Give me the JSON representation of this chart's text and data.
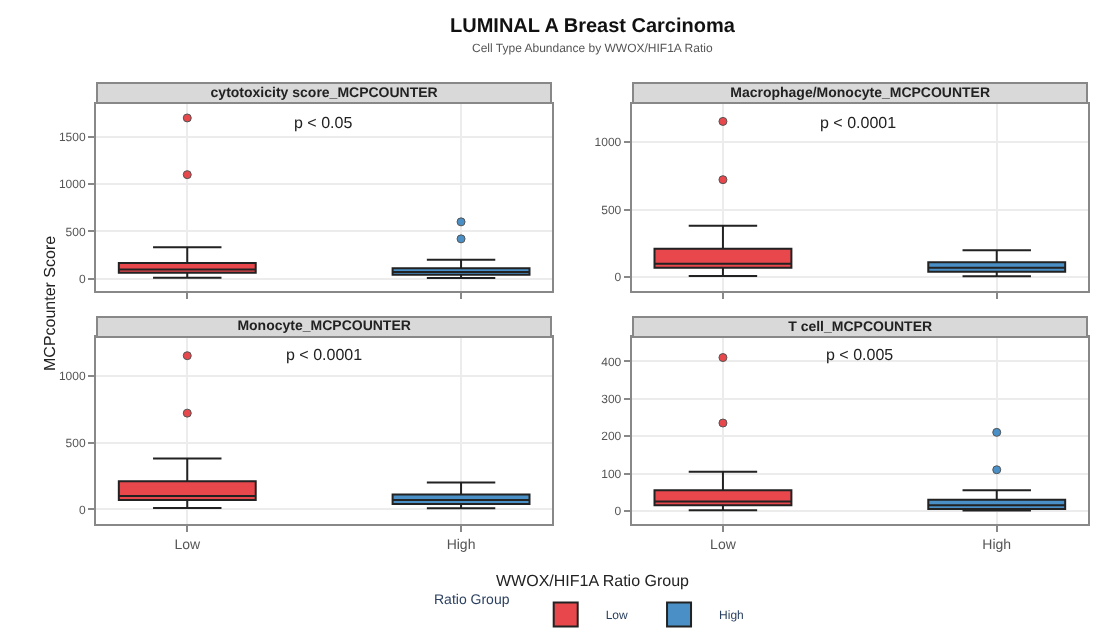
{
  "chart_data": [
    {
      "type": "other",
      "title": "LUMINAL A Breast Carcinoma",
      "subtitle": "Cell Type Abundance by WWOX/HIF1A Ratio",
      "xlabel": "WWOX/HIF1A Ratio Group",
      "ylabel": "MCPcounter Score"
    },
    {
      "type": "box",
      "title": "cytotoxicity score_MCPCOUNTER",
      "legend_title": "Ratio Group",
      "legend": "bottom",
      "categories": [
        "Low",
        "High"
      ],
      "annotations": [
        "p < 0.05"
      ],
      "ylim": [
        -130,
        1850
      ],
      "yticks": [
        0,
        500,
        1000,
        1500
      ],
      "grid": true,
      "tick_labels": "y",
      "series": [
        {
          "name": "Low",
          "color": "#e8474c",
          "x": [
            "Low"
          ],
          "boxes": [
            {
              "low": 8,
              "q1": 60,
              "median": 95,
              "q3": 165,
              "high": 330,
              "outliers": [
                1100,
                1700
              ]
            }
          ]
        },
        {
          "name": "High",
          "color": "#4a90c6",
          "x": [
            "High"
          ],
          "boxes": [
            {
              "low": 5,
              "q1": 40,
              "median": 70,
              "q3": 110,
              "high": 200,
              "outliers": [
                420,
                600
              ]
            }
          ]
        }
      ]
    },
    {
      "type": "box",
      "title": "Macrophage/Monocyte_MCPCOUNTER",
      "categories": [
        "Low",
        "High"
      ],
      "annotations": [
        "p < 0.0001"
      ],
      "ylim": [
        -100,
        1280
      ],
      "yticks": [
        0,
        500,
        1000
      ],
      "grid": true,
      "tick_labels": "y",
      "series": [
        {
          "name": "Low",
          "color": "#e8474c",
          "x": [
            "Low"
          ],
          "boxes": [
            {
              "low": 10,
              "q1": 70,
              "median": 100,
              "q3": 210,
              "high": 380,
              "outliers": [
                720,
                1150
              ]
            }
          ]
        },
        {
          "name": "High",
          "color": "#4a90c6",
          "x": [
            "High"
          ],
          "boxes": [
            {
              "low": 8,
              "q1": 40,
              "median": 70,
              "q3": 110,
              "high": 200
            }
          ]
        }
      ]
    },
    {
      "type": "box",
      "title": "Monocyte_MCPCOUNTER",
      "categories": [
        "Low",
        "High"
      ],
      "annotations": [
        "p < 0.0001"
      ],
      "ylim": [
        -110,
        1290
      ],
      "yticks": [
        0,
        500,
        1000
      ],
      "grid": true,
      "series": [
        {
          "name": "Low",
          "color": "#e8474c",
          "x": [
            "Low"
          ],
          "boxes": [
            {
              "low": 10,
              "q1": 70,
              "median": 100,
              "q3": 210,
              "high": 380,
              "outliers": [
                720,
                1150
              ]
            }
          ]
        },
        {
          "name": "High",
          "color": "#4a90c6",
          "x": [
            "High"
          ],
          "boxes": [
            {
              "low": 8,
              "q1": 40,
              "median": 70,
              "q3": 110,
              "high": 200
            }
          ]
        }
      ]
    },
    {
      "type": "box",
      "title": "T cell_MCPCOUNTER",
      "categories": [
        "Low",
        "High"
      ],
      "annotations": [
        "p < 0.005"
      ],
      "ylim": [
        -35,
        465
      ],
      "yticks": [
        0,
        100,
        200,
        300,
        400
      ],
      "grid": true,
      "series": [
        {
          "name": "Low",
          "color": "#e8474c",
          "x": [
            "Low"
          ],
          "boxes": [
            {
              "low": 2,
              "q1": 15,
              "median": 25,
              "q3": 55,
              "high": 105,
              "outliers": [
                235,
                410
              ]
            }
          ]
        },
        {
          "name": "High",
          "color": "#4a90c6",
          "x": [
            "High"
          ],
          "boxes": [
            {
              "low": 1,
              "q1": 5,
              "median": 15,
              "q3": 30,
              "high": 55,
              "outliers": [
                110,
                210
              ]
            }
          ]
        }
      ]
    }
  ]
}
